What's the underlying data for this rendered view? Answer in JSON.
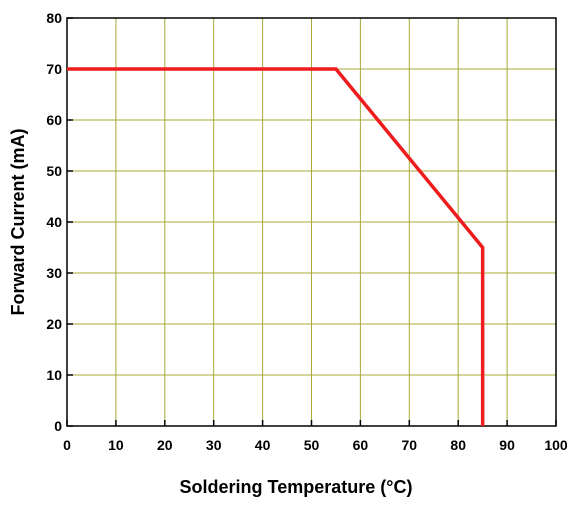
{
  "chart_data": {
    "type": "line",
    "xlabel": "Soldering Temperature (°C)",
    "ylabel": "Forward Current (mA)",
    "series": [
      {
        "name": "Forward Current",
        "color": "#ee1c1c",
        "x": [
          0,
          55,
          85,
          85
        ],
        "values": [
          70,
          70,
          35,
          0
        ]
      }
    ],
    "xlim": [
      0,
      100
    ],
    "xticks": [
      0,
      10,
      20,
      30,
      40,
      50,
      60,
      70,
      80,
      90,
      100
    ],
    "ylim": [
      0,
      80
    ],
    "yticks": [
      0,
      10,
      20,
      30,
      40,
      50,
      60,
      70,
      80
    ],
    "grid": true,
    "grid_color": "#a8a838"
  }
}
